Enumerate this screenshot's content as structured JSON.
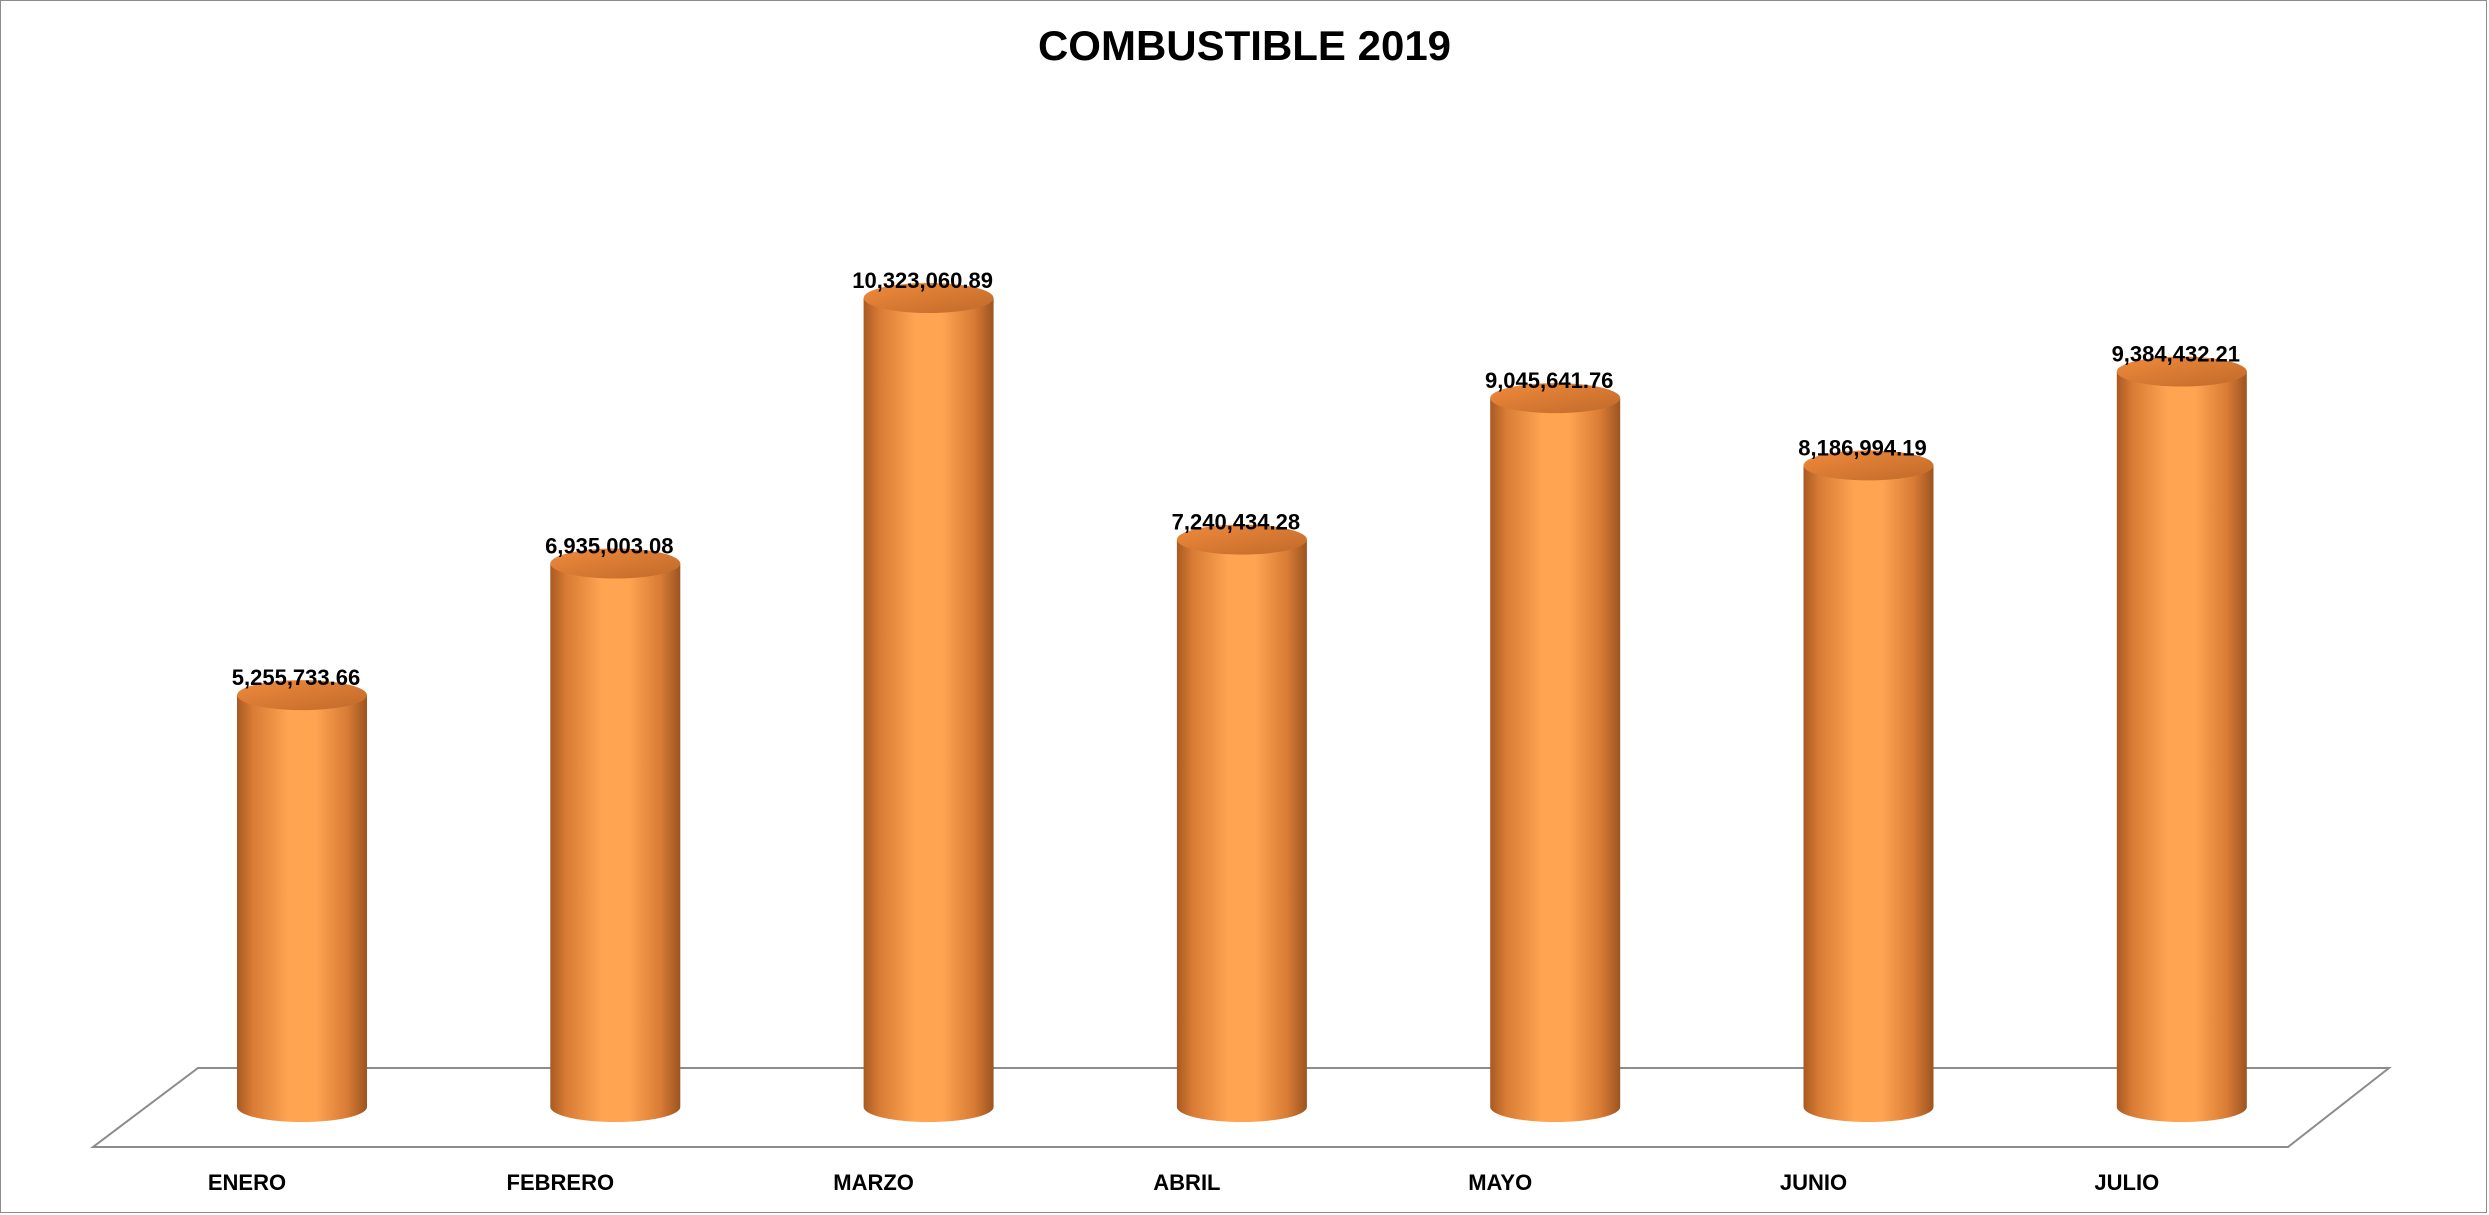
{
  "chart_data": {
    "type": "bar",
    "style": "3d-cylinder",
    "title": "COMBUSTIBLE 2019",
    "categories": [
      "ENERO",
      "FEBRERO",
      "MARZO",
      "ABRIL",
      "MAYO",
      "JUNIO",
      "JULIO"
    ],
    "values": [
      5255733.66,
      6935003.08,
      10323060.89,
      7240434.28,
      9045641.76,
      8186994.19,
      9384432.21
    ],
    "data_labels": [
      "5,255,733.66",
      "6,935,003.08",
      "10,323,060.89",
      "7,240,434.28",
      "9,045,641.76",
      "8,186,994.19",
      "9,384,432.21"
    ],
    "xlabel": "",
    "ylabel": "",
    "ylim": [
      0,
      10323060.89
    ],
    "grid": false,
    "legend": "none",
    "colors": {
      "bar": "#f79646",
      "bar_highlight": "#ffa552",
      "bar_shadow": "#b8642a",
      "floor_line": "#8c8c8c"
    }
  }
}
